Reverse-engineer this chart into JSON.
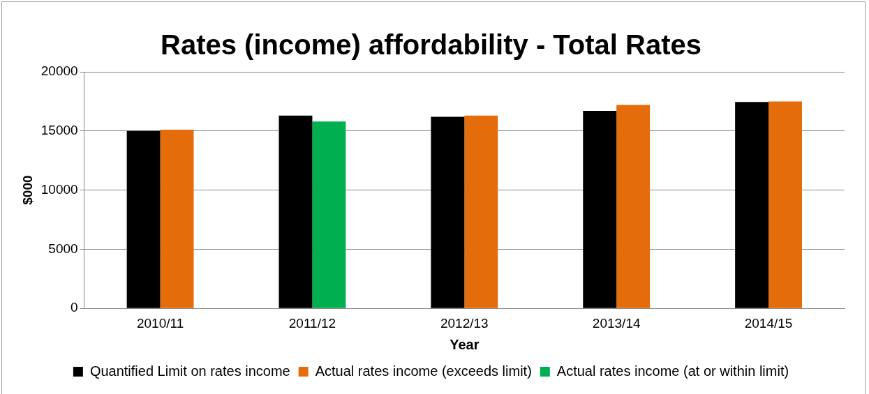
{
  "chart_data": {
    "type": "bar",
    "title": "Rates (income) affordability - Total Rates",
    "xlabel": "Year",
    "ylabel": "$000",
    "categories": [
      "2010/11",
      "2011/12",
      "2012/13",
      "2013/14",
      "2014/15"
    ],
    "series": [
      {
        "name": "Quantified Limit on rates income",
        "color": "#000000",
        "values": [
          15000,
          16300,
          16200,
          16700,
          17450
        ]
      },
      {
        "name": "Actual rates income (exceeds limit)",
        "color": "#e46c0a",
        "values": [
          15100,
          null,
          16300,
          17200,
          17500
        ]
      },
      {
        "name": "Actual rates income (at or within limit)",
        "color": "#00b050",
        "values": [
          null,
          15800,
          null,
          null,
          null
        ]
      }
    ],
    "ylim": [
      0,
      20000
    ],
    "yticks": [
      0,
      5000,
      10000,
      15000,
      20000
    ],
    "grid": "y",
    "legend": "bottom"
  }
}
